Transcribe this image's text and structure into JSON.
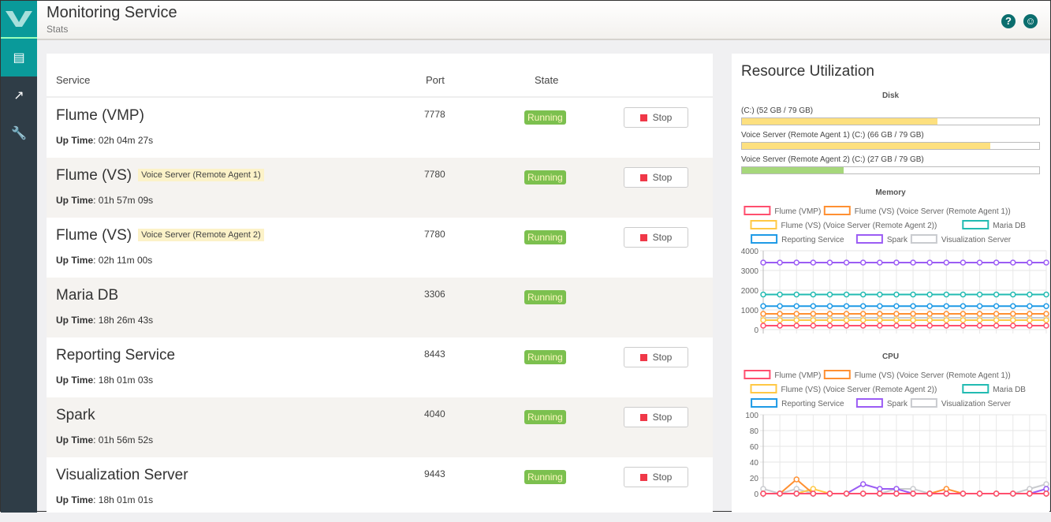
{
  "header": {
    "title": "Monitoring Service",
    "subtitle": "Stats",
    "help_icon": "question-circle-icon",
    "user_icon": "user-circle-icon"
  },
  "sidebar": {
    "items": [
      {
        "name": "servers-icon",
        "active": true
      },
      {
        "name": "chart-line-icon"
      },
      {
        "name": "wrench-icon"
      }
    ]
  },
  "table": {
    "columns": [
      "Service",
      "Port",
      "State"
    ],
    "rows": [
      {
        "name": "Flume (VMP)",
        "tag": "",
        "uptime": "02h 04m 27s",
        "port": "7778",
        "state": "Running",
        "action": "Stop"
      },
      {
        "name": "Flume (VS)",
        "tag": "Voice Server (Remote Agent 1)",
        "uptime": "01h 57m 09s",
        "port": "7780",
        "state": "Running",
        "action": "Stop"
      },
      {
        "name": "Flume (VS)",
        "tag": "Voice Server (Remote Agent 2)",
        "uptime": "02h 11m 00s",
        "port": "7780",
        "state": "Running",
        "action": "Stop"
      },
      {
        "name": "Maria DB",
        "tag": "",
        "uptime": "18h 26m 43s",
        "port": "3306",
        "state": "Running",
        "action": ""
      },
      {
        "name": "Reporting Service",
        "tag": "",
        "uptime": "18h 01m 03s",
        "port": "8443",
        "state": "Running",
        "action": "Stop"
      },
      {
        "name": "Spark",
        "tag": "",
        "uptime": "01h 56m 52s",
        "port": "4040",
        "state": "Running",
        "action": "Stop"
      },
      {
        "name": "Visualization Server",
        "tag": "",
        "uptime": "18h 01m 01s",
        "port": "9443",
        "state": "Running",
        "action": "Stop"
      }
    ],
    "uptime_label": "Up Time"
  },
  "resources": {
    "title": "Resource Utilization",
    "disk_title": "Disk",
    "disks": [
      {
        "label": "(C:)  (52 GB / 79 GB)",
        "used": 52,
        "total": 79,
        "color": "#fde07f"
      },
      {
        "label": "Voice Server (Remote Agent 1) (C:)  (66 GB / 79 GB)",
        "used": 66,
        "total": 79,
        "color": "#fde07f"
      },
      {
        "label": "Voice Server (Remote Agent 2) (C:)  (27 GB / 79 GB)",
        "used": 27,
        "total": 79,
        "color": "#a6d77b"
      }
    ]
  },
  "chart_data": [
    {
      "type": "line",
      "title": "Memory",
      "ylim": [
        0,
        4000
      ],
      "yticks": [
        0,
        1000,
        2000,
        3000,
        4000
      ],
      "grid": true,
      "legend": "top",
      "series": [
        {
          "name": "Flume (VMP)",
          "color": "#ff4f6e",
          "values": [
            200,
            200,
            200,
            200,
            200,
            200,
            200,
            200,
            200,
            200,
            200,
            200,
            200,
            200,
            200,
            200,
            200,
            200
          ]
        },
        {
          "name": "Flume (VS) (Voice Server (Remote Agent 1))",
          "color": "#ff9032",
          "values": [
            800,
            800,
            800,
            800,
            800,
            800,
            800,
            800,
            800,
            800,
            800,
            800,
            800,
            800,
            800,
            800,
            800,
            800
          ]
        },
        {
          "name": "Flume (VS) (Voice Server (Remote Agent 2))",
          "color": "#ffc844",
          "values": [
            480,
            480,
            480,
            480,
            480,
            480,
            480,
            480,
            480,
            480,
            480,
            480,
            480,
            480,
            480,
            480,
            480,
            480
          ]
        },
        {
          "name": "Maria DB",
          "color": "#22bbb2",
          "values": [
            1780,
            1780,
            1780,
            1780,
            1780,
            1780,
            1780,
            1780,
            1780,
            1780,
            1780,
            1780,
            1780,
            1780,
            1780,
            1780,
            1780,
            1780
          ]
        },
        {
          "name": "Reporting Service",
          "color": "#1e9ae6",
          "values": [
            1190,
            1190,
            1190,
            1190,
            1190,
            1190,
            1190,
            1190,
            1190,
            1190,
            1190,
            1190,
            1190,
            1190,
            1190,
            1190,
            1190,
            1190
          ]
        },
        {
          "name": "Spark",
          "color": "#9b5cf4",
          "values": [
            3400,
            3400,
            3400,
            3400,
            3400,
            3400,
            3400,
            3400,
            3400,
            3400,
            3400,
            3400,
            3400,
            3400,
            3400,
            3400,
            3400,
            3400
          ]
        },
        {
          "name": "Visualization Server",
          "color": "#c9cbcf",
          "values": [
            600,
            600,
            600,
            600,
            600,
            600,
            600,
            600,
            600,
            600,
            600,
            600,
            600,
            600,
            600,
            600,
            600,
            600
          ]
        }
      ]
    },
    {
      "type": "line",
      "title": "CPU",
      "ylim": [
        0,
        100
      ],
      "yticks": [
        0,
        20,
        40,
        60,
        80,
        100
      ],
      "grid": true,
      "legend": "top",
      "series": [
        {
          "name": "Flume (VMP)",
          "color": "#ff4f6e",
          "values": [
            0,
            0,
            0,
            0,
            0,
            0,
            0,
            0,
            0,
            0,
            0,
            0,
            0,
            0,
            0,
            0,
            0,
            0
          ]
        },
        {
          "name": "Flume (VS) (Voice Server (Remote Agent 1))",
          "color": "#ff9032",
          "values": [
            0,
            0,
            18,
            0,
            0,
            0,
            0,
            0,
            0,
            0,
            0,
            6,
            0,
            0,
            0,
            0,
            0,
            0
          ]
        },
        {
          "name": "Flume (VS) (Voice Server (Remote Agent 2))",
          "color": "#ffc844",
          "values": [
            0,
            0,
            0,
            6,
            0,
            0,
            0,
            0,
            0,
            0,
            0,
            0,
            0,
            0,
            0,
            0,
            0,
            0
          ]
        },
        {
          "name": "Maria DB",
          "color": "#22bbb2",
          "values": [
            0,
            0,
            0,
            0,
            0,
            0,
            0,
            0,
            0,
            0,
            0,
            0,
            0,
            0,
            0,
            0,
            0,
            0
          ]
        },
        {
          "name": "Reporting Service",
          "color": "#1e9ae6",
          "values": [
            0,
            0,
            0,
            0,
            0,
            0,
            0,
            0,
            0,
            0,
            0,
            0,
            0,
            0,
            0,
            0,
            0,
            0
          ]
        },
        {
          "name": "Spark",
          "color": "#9b5cf4",
          "values": [
            0,
            0,
            0,
            0,
            0,
            0,
            12,
            6,
            6,
            0,
            0,
            0,
            0,
            0,
            0,
            0,
            0,
            6
          ]
        },
        {
          "name": "Visualization Server",
          "color": "#c9cbcf",
          "values": [
            6,
            0,
            6,
            0,
            0,
            0,
            0,
            0,
            6,
            6,
            0,
            0,
            0,
            0,
            0,
            0,
            6,
            12
          ]
        }
      ]
    }
  ]
}
